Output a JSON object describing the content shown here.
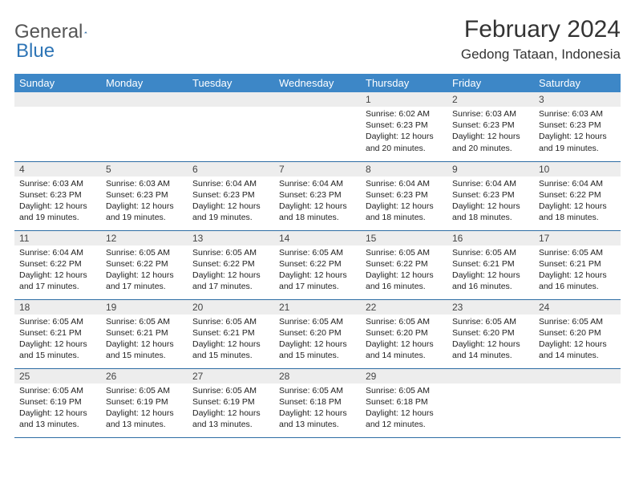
{
  "logo": {
    "part1": "General",
    "part2": "Blue"
  },
  "header": {
    "title": "February 2024",
    "location": "Gedong Tataan, Indonesia"
  },
  "colors": {
    "header_bg": "#3d87c7",
    "header_text": "#ffffff",
    "daynum_bg": "#ededed",
    "row_border": "#2e6da4",
    "logo_blue": "#2e75b6",
    "logo_gray": "#555555"
  },
  "weekdays": [
    "Sunday",
    "Monday",
    "Tuesday",
    "Wednesday",
    "Thursday",
    "Friday",
    "Saturday"
  ],
  "weeks": [
    [
      {
        "n": "",
        "sr": "",
        "ss": "",
        "dl": ""
      },
      {
        "n": "",
        "sr": "",
        "ss": "",
        "dl": ""
      },
      {
        "n": "",
        "sr": "",
        "ss": "",
        "dl": ""
      },
      {
        "n": "",
        "sr": "",
        "ss": "",
        "dl": ""
      },
      {
        "n": "1",
        "sr": "Sunrise: 6:02 AM",
        "ss": "Sunset: 6:23 PM",
        "dl": "Daylight: 12 hours and 20 minutes."
      },
      {
        "n": "2",
        "sr": "Sunrise: 6:03 AM",
        "ss": "Sunset: 6:23 PM",
        "dl": "Daylight: 12 hours and 20 minutes."
      },
      {
        "n": "3",
        "sr": "Sunrise: 6:03 AM",
        "ss": "Sunset: 6:23 PM",
        "dl": "Daylight: 12 hours and 19 minutes."
      }
    ],
    [
      {
        "n": "4",
        "sr": "Sunrise: 6:03 AM",
        "ss": "Sunset: 6:23 PM",
        "dl": "Daylight: 12 hours and 19 minutes."
      },
      {
        "n": "5",
        "sr": "Sunrise: 6:03 AM",
        "ss": "Sunset: 6:23 PM",
        "dl": "Daylight: 12 hours and 19 minutes."
      },
      {
        "n": "6",
        "sr": "Sunrise: 6:04 AM",
        "ss": "Sunset: 6:23 PM",
        "dl": "Daylight: 12 hours and 19 minutes."
      },
      {
        "n": "7",
        "sr": "Sunrise: 6:04 AM",
        "ss": "Sunset: 6:23 PM",
        "dl": "Daylight: 12 hours and 18 minutes."
      },
      {
        "n": "8",
        "sr": "Sunrise: 6:04 AM",
        "ss": "Sunset: 6:23 PM",
        "dl": "Daylight: 12 hours and 18 minutes."
      },
      {
        "n": "9",
        "sr": "Sunrise: 6:04 AM",
        "ss": "Sunset: 6:23 PM",
        "dl": "Daylight: 12 hours and 18 minutes."
      },
      {
        "n": "10",
        "sr": "Sunrise: 6:04 AM",
        "ss": "Sunset: 6:22 PM",
        "dl": "Daylight: 12 hours and 18 minutes."
      }
    ],
    [
      {
        "n": "11",
        "sr": "Sunrise: 6:04 AM",
        "ss": "Sunset: 6:22 PM",
        "dl": "Daylight: 12 hours and 17 minutes."
      },
      {
        "n": "12",
        "sr": "Sunrise: 6:05 AM",
        "ss": "Sunset: 6:22 PM",
        "dl": "Daylight: 12 hours and 17 minutes."
      },
      {
        "n": "13",
        "sr": "Sunrise: 6:05 AM",
        "ss": "Sunset: 6:22 PM",
        "dl": "Daylight: 12 hours and 17 minutes."
      },
      {
        "n": "14",
        "sr": "Sunrise: 6:05 AM",
        "ss": "Sunset: 6:22 PM",
        "dl": "Daylight: 12 hours and 17 minutes."
      },
      {
        "n": "15",
        "sr": "Sunrise: 6:05 AM",
        "ss": "Sunset: 6:22 PM",
        "dl": "Daylight: 12 hours and 16 minutes."
      },
      {
        "n": "16",
        "sr": "Sunrise: 6:05 AM",
        "ss": "Sunset: 6:21 PM",
        "dl": "Daylight: 12 hours and 16 minutes."
      },
      {
        "n": "17",
        "sr": "Sunrise: 6:05 AM",
        "ss": "Sunset: 6:21 PM",
        "dl": "Daylight: 12 hours and 16 minutes."
      }
    ],
    [
      {
        "n": "18",
        "sr": "Sunrise: 6:05 AM",
        "ss": "Sunset: 6:21 PM",
        "dl": "Daylight: 12 hours and 15 minutes."
      },
      {
        "n": "19",
        "sr": "Sunrise: 6:05 AM",
        "ss": "Sunset: 6:21 PM",
        "dl": "Daylight: 12 hours and 15 minutes."
      },
      {
        "n": "20",
        "sr": "Sunrise: 6:05 AM",
        "ss": "Sunset: 6:21 PM",
        "dl": "Daylight: 12 hours and 15 minutes."
      },
      {
        "n": "21",
        "sr": "Sunrise: 6:05 AM",
        "ss": "Sunset: 6:20 PM",
        "dl": "Daylight: 12 hours and 15 minutes."
      },
      {
        "n": "22",
        "sr": "Sunrise: 6:05 AM",
        "ss": "Sunset: 6:20 PM",
        "dl": "Daylight: 12 hours and 14 minutes."
      },
      {
        "n": "23",
        "sr": "Sunrise: 6:05 AM",
        "ss": "Sunset: 6:20 PM",
        "dl": "Daylight: 12 hours and 14 minutes."
      },
      {
        "n": "24",
        "sr": "Sunrise: 6:05 AM",
        "ss": "Sunset: 6:20 PM",
        "dl": "Daylight: 12 hours and 14 minutes."
      }
    ],
    [
      {
        "n": "25",
        "sr": "Sunrise: 6:05 AM",
        "ss": "Sunset: 6:19 PM",
        "dl": "Daylight: 12 hours and 13 minutes."
      },
      {
        "n": "26",
        "sr": "Sunrise: 6:05 AM",
        "ss": "Sunset: 6:19 PM",
        "dl": "Daylight: 12 hours and 13 minutes."
      },
      {
        "n": "27",
        "sr": "Sunrise: 6:05 AM",
        "ss": "Sunset: 6:19 PM",
        "dl": "Daylight: 12 hours and 13 minutes."
      },
      {
        "n": "28",
        "sr": "Sunrise: 6:05 AM",
        "ss": "Sunset: 6:18 PM",
        "dl": "Daylight: 12 hours and 13 minutes."
      },
      {
        "n": "29",
        "sr": "Sunrise: 6:05 AM",
        "ss": "Sunset: 6:18 PM",
        "dl": "Daylight: 12 hours and 12 minutes."
      },
      {
        "n": "",
        "sr": "",
        "ss": "",
        "dl": ""
      },
      {
        "n": "",
        "sr": "",
        "ss": "",
        "dl": ""
      }
    ]
  ]
}
